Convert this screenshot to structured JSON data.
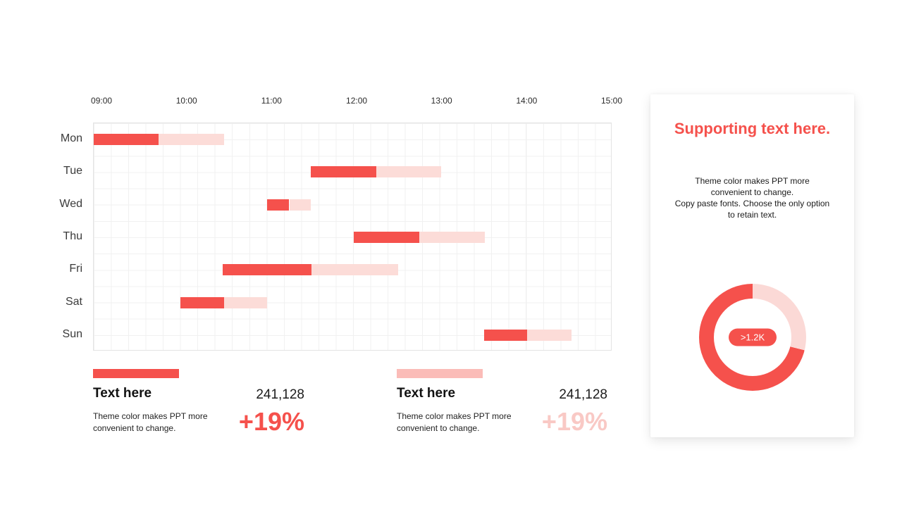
{
  "colors": {
    "accent": "#f5514c",
    "bar_light": "#fcdcd8",
    "legend_swatch_light": "#fbbcb8",
    "delta_light": "#f9c9c5",
    "donut_light": "#fbd9d6",
    "grid": "#f1f1f1"
  },
  "chart_data": {
    "type": "bar",
    "variant": "gantt-timeline",
    "title": "",
    "xlabel": "",
    "ylabel": "",
    "legend_position": "none",
    "grid": true,
    "x_axis": {
      "tick_labels": [
        "09:00",
        "10:00",
        "11:00",
        "12:00",
        "13:00",
        "14:00",
        "15:00"
      ],
      "tick_hours": [
        9,
        10,
        11,
        12,
        13,
        14,
        15
      ],
      "range_hours": [
        8.9,
        15.0
      ]
    },
    "categories": [
      "Mon",
      "Tue",
      "Wed",
      "Thu",
      "Fri",
      "Sat",
      "Sun"
    ],
    "series": [
      {
        "name": "solid-red-segment",
        "color_key": "accent"
      },
      {
        "name": "light-pink-segment",
        "color_key": "bar_light"
      }
    ],
    "bars": [
      {
        "day": "Mon",
        "start": 8.9,
        "split": 9.66,
        "end": 10.43
      },
      {
        "day": "Tue",
        "start": 11.45,
        "split": 12.22,
        "end": 12.99
      },
      {
        "day": "Wed",
        "start": 10.94,
        "split": 11.2,
        "end": 11.45
      },
      {
        "day": "Thu",
        "start": 11.96,
        "split": 12.73,
        "end": 13.5
      },
      {
        "day": "Fri",
        "start": 10.42,
        "split": 11.46,
        "end": 12.48
      },
      {
        "day": "Sat",
        "start": 9.92,
        "split": 10.43,
        "end": 10.94
      },
      {
        "day": "Sun",
        "start": 13.49,
        "split": 14.0,
        "end": 14.52
      }
    ]
  },
  "legend": {
    "items": [
      {
        "title": "Text here",
        "value": "241,128",
        "description": "Theme color makes PPT more convenient to change.",
        "delta": "+19%",
        "swatch_color_key": "accent",
        "delta_color_key": "accent"
      },
      {
        "title": "Text here",
        "value": "241,128",
        "description": "Theme color makes PPT more convenient to change.",
        "delta": "+19%",
        "swatch_color_key": "legend_swatch_light",
        "delta_color_key": "delta_light"
      }
    ]
  },
  "side_panel": {
    "title": "Supporting text here.",
    "body_lines": [
      "Theme color makes PPT more",
      "convenient to change.",
      "Copy paste fonts. Choose the only option",
      "to retain text."
    ],
    "donut": {
      "badge": ">1.2K",
      "segments": [
        {
          "color_key": "donut_light",
          "start_deg": 0,
          "end_deg": 104
        },
        {
          "color_key": "accent",
          "start_deg": 104,
          "end_deg": 360
        }
      ]
    }
  }
}
